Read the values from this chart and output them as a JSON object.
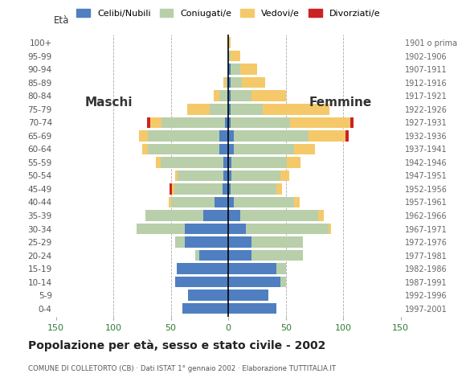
{
  "age_groups": [
    "0-4",
    "5-9",
    "10-14",
    "15-19",
    "20-24",
    "25-29",
    "30-34",
    "35-39",
    "40-44",
    "45-49",
    "50-54",
    "55-59",
    "60-64",
    "65-69",
    "70-74",
    "75-79",
    "80-84",
    "85-89",
    "90-94",
    "95-99",
    "100+"
  ],
  "birth_years": [
    "1997-2001",
    "1992-1996",
    "1987-1991",
    "1982-1986",
    "1977-1981",
    "1972-1976",
    "1967-1971",
    "1962-1966",
    "1957-1961",
    "1952-1956",
    "1947-1951",
    "1942-1946",
    "1937-1941",
    "1932-1936",
    "1927-1931",
    "1922-1926",
    "1917-1921",
    "1912-1916",
    "1907-1911",
    "1902-1906",
    "1901 o prima"
  ],
  "male": {
    "celibe": [
      40,
      35,
      46,
      45,
      25,
      38,
      38,
      22,
      12,
      5,
      4,
      4,
      8,
      8,
      3,
      0,
      0,
      0,
      0,
      0,
      0
    ],
    "coniugato": [
      0,
      0,
      0,
      0,
      4,
      8,
      42,
      50,
      38,
      42,
      40,
      55,
      62,
      62,
      55,
      16,
      8,
      2,
      0,
      0,
      0
    ],
    "vedovo": [
      0,
      0,
      0,
      0,
      0,
      0,
      0,
      0,
      2,
      2,
      2,
      4,
      5,
      8,
      10,
      20,
      5,
      2,
      0,
      0,
      0
    ],
    "divorziato": [
      0,
      0,
      0,
      0,
      0,
      0,
      0,
      0,
      0,
      2,
      0,
      0,
      0,
      0,
      3,
      0,
      0,
      0,
      0,
      0,
      0
    ]
  },
  "female": {
    "nubile": [
      42,
      35,
      45,
      42,
      20,
      20,
      15,
      10,
      5,
      2,
      3,
      3,
      5,
      5,
      2,
      2,
      2,
      2,
      2,
      0,
      0
    ],
    "coniugata": [
      0,
      0,
      5,
      8,
      45,
      45,
      72,
      68,
      52,
      40,
      42,
      48,
      52,
      65,
      52,
      28,
      18,
      10,
      8,
      2,
      0
    ],
    "vedova": [
      0,
      0,
      0,
      0,
      0,
      0,
      2,
      5,
      5,
      5,
      8,
      12,
      18,
      32,
      52,
      58,
      30,
      20,
      15,
      8,
      2
    ],
    "divorziata": [
      0,
      0,
      0,
      0,
      0,
      0,
      0,
      0,
      0,
      0,
      0,
      0,
      0,
      3,
      3,
      0,
      0,
      0,
      0,
      0,
      0
    ]
  },
  "colors": {
    "celibe": "#4f7fc0",
    "coniugato": "#b8cfaa",
    "vedovo": "#f5c96a",
    "divorziato": "#cc2222"
  },
  "title": "Popolazione per età, sesso e stato civile - 2002",
  "subtitle": "COMUNE DI COLLETORTO (CB) · Dati ISTAT 1° gennaio 2002 · Elaborazione TUTTITALIA.IT",
  "xlim": 150,
  "legend_labels": [
    "Celibi/Nubili",
    "Coniugati/e",
    "Vedovi/e",
    "Divorziati/e"
  ],
  "ylabel_left": "Età",
  "label_maschi": "Maschi",
  "label_femmine": "Femmine",
  "bg_color": "#ffffff"
}
